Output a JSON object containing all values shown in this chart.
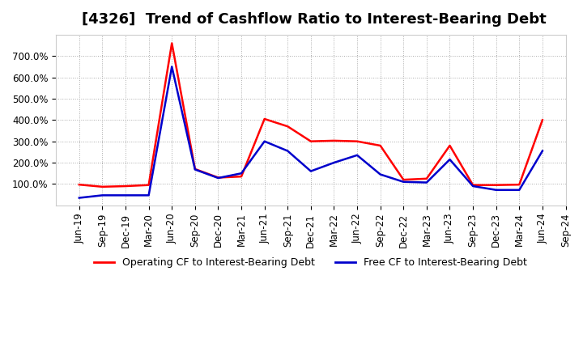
{
  "title": "[4326]  Trend of Cashflow Ratio to Interest-Bearing Debt",
  "x_labels": [
    "Jun-19",
    "Sep-19",
    "Dec-19",
    "Mar-20",
    "Jun-20",
    "Sep-20",
    "Dec-20",
    "Mar-21",
    "Jun-21",
    "Sep-21",
    "Dec-21",
    "Mar-22",
    "Jun-22",
    "Sep-22",
    "Dec-22",
    "Mar-23",
    "Jun-23",
    "Sep-23",
    "Dec-23",
    "Mar-24",
    "Jun-24",
    "Sep-24"
  ],
  "operating_cf": [
    97,
    87,
    90,
    95,
    760,
    170,
    130,
    135,
    405,
    370,
    300,
    303,
    300,
    280,
    120,
    125,
    280,
    95,
    95,
    97,
    400,
    null
  ],
  "free_cf": [
    35,
    47,
    47,
    47,
    650,
    168,
    128,
    150,
    300,
    255,
    160,
    200,
    235,
    145,
    110,
    107,
    215,
    90,
    72,
    72,
    255,
    null
  ],
  "operating_color": "#ff0000",
  "free_color": "#0000cc",
  "background_color": "#ffffff",
  "plot_bg_color": "#ffffff",
  "grid_color": "#aaaaaa",
  "ylim": [
    0,
    800
  ],
  "yticks": [
    100,
    200,
    300,
    400,
    500,
    600,
    700
  ],
  "legend_operating": "Operating CF to Interest-Bearing Debt",
  "legend_free": "Free CF to Interest-Bearing Debt",
  "title_fontsize": 13,
  "axis_fontsize": 8.5,
  "legend_fontsize": 9
}
